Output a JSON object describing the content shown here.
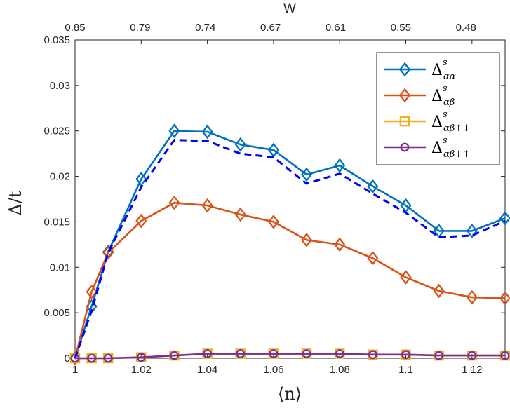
{
  "chart_data": {
    "type": "line",
    "xlabel": "⟨n⟩",
    "ylabel": "Δ/t",
    "top_axis_label": "W",
    "xlim": [
      1,
      1.13
    ],
    "ylim": [
      0,
      0.035
    ],
    "x_ticks": [
      "1",
      "1.02",
      "1.04",
      "1.06",
      "1.08",
      "1.1",
      "1.12"
    ],
    "x_tick_values": [
      1,
      1.02,
      1.04,
      1.06,
      1.08,
      1.1,
      1.12
    ],
    "y_ticks": [
      "0",
      "0.005",
      "0.01",
      "0.015",
      "0.02",
      "0.025",
      "0.03",
      "0.035"
    ],
    "y_tick_values": [
      0,
      0.005,
      0.01,
      0.015,
      0.02,
      0.025,
      0.03,
      0.035
    ],
    "top_ticks": [
      "0.85",
      "0.79",
      "0.74",
      "0.67",
      "0.61",
      "0.55",
      "0.48"
    ],
    "grid": false,
    "legend_position": "top-right",
    "x": [
      1.0,
      1.005,
      1.01,
      1.02,
      1.03,
      1.04,
      1.05,
      1.06,
      1.07,
      1.08,
      1.09,
      1.1,
      1.11,
      1.12,
      1.13
    ],
    "series": [
      {
        "name": "Δ^s_αα",
        "legend_base": "Δ",
        "legend_sup": "s",
        "legend_sub": "αα",
        "color": "#0072BD",
        "marker": "diamond",
        "style": "solid",
        "values": [
          0.0,
          0.0057,
          0.0117,
          0.0197,
          0.025,
          0.0249,
          0.0235,
          0.0229,
          0.0202,
          0.0212,
          0.0189,
          0.0168,
          0.014,
          0.014,
          0.0154
        ]
      },
      {
        "name": "Δ^s_αβ",
        "legend_base": "Δ",
        "legend_sup": "s",
        "legend_sub": "αβ",
        "color": "#D95319",
        "marker": "diamond",
        "style": "solid",
        "values": [
          0.0,
          0.0073,
          0.0116,
          0.0151,
          0.0171,
          0.0168,
          0.0158,
          0.015,
          0.013,
          0.0125,
          0.011,
          0.0089,
          0.0074,
          0.0067,
          0.0066
        ]
      },
      {
        "name": "Δ^s_αβ↑↓",
        "legend_base": "Δ",
        "legend_sup": "s",
        "legend_sub": "αβ↑↓",
        "color": "#EDB120",
        "marker": "square",
        "style": "solid",
        "values": [
          0.0,
          0.0,
          0.0,
          0.0001,
          0.0003,
          0.0005,
          0.0005,
          0.0005,
          0.0005,
          0.0005,
          0.0004,
          0.0004,
          0.0003,
          0.0003,
          0.0003
        ]
      },
      {
        "name": "Δ^s_αβ↓↑",
        "legend_base": "Δ",
        "legend_sup": "s",
        "legend_sub": "αβ↓↑",
        "color": "#7E2F8E",
        "marker": "circle",
        "style": "solid",
        "values": [
          0.0,
          0.0,
          0.0,
          0.0001,
          0.0003,
          0.0005,
          0.0005,
          0.0005,
          0.0005,
          0.0005,
          0.0004,
          0.0004,
          0.0003,
          0.0003,
          0.0003
        ]
      },
      {
        "color": "#0000FF",
        "marker": "none",
        "style": "dashed",
        "in_legend": false,
        "values": [
          0.0,
          0.0052,
          0.0116,
          0.0188,
          0.024,
          0.0239,
          0.0225,
          0.0221,
          0.0192,
          0.0203,
          0.0181,
          0.016,
          0.0133,
          0.0135,
          0.0151
        ]
      }
    ]
  }
}
